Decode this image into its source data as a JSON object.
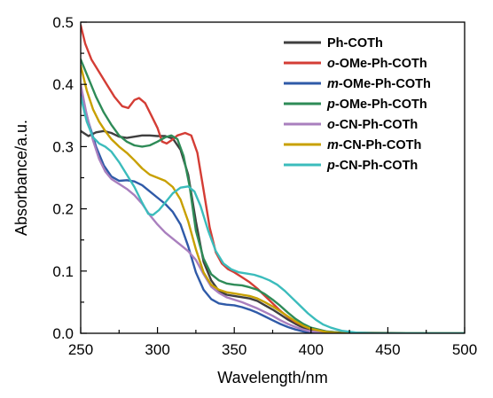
{
  "chart_data": {
    "type": "line",
    "xlabel": "Wavelength/nm",
    "ylabel": "Absorbance/a.u.",
    "xlim": [
      250,
      500
    ],
    "ylim": [
      0.0,
      0.5
    ],
    "xticks": [
      250,
      300,
      350,
      400,
      450,
      500
    ],
    "yticks": [
      0.0,
      0.1,
      0.2,
      0.3,
      0.4,
      0.5
    ],
    "xtick_labels": [
      "250",
      "300",
      "350",
      "400",
      "450",
      "500"
    ],
    "ytick_labels": [
      "0.0",
      "0.1",
      "0.2",
      "0.3",
      "0.4",
      "0.5"
    ],
    "grid": false,
    "legend_position": "top-right",
    "series": [
      {
        "name": "Ph-COTh",
        "prefix": "",
        "rest": "Ph-COTh",
        "color": "#3f3f3f",
        "points": [
          [
            250,
            0.325
          ],
          [
            255,
            0.317
          ],
          [
            260,
            0.323
          ],
          [
            265,
            0.325
          ],
          [
            270,
            0.322
          ],
          [
            275,
            0.316
          ],
          [
            280,
            0.314
          ],
          [
            285,
            0.316
          ],
          [
            290,
            0.318
          ],
          [
            295,
            0.318
          ],
          [
            300,
            0.317
          ],
          [
            305,
            0.317
          ],
          [
            310,
            0.313
          ],
          [
            315,
            0.295
          ],
          [
            320,
            0.255
          ],
          [
            325,
            0.18
          ],
          [
            330,
            0.115
          ],
          [
            335,
            0.085
          ],
          [
            340,
            0.068
          ],
          [
            345,
            0.062
          ],
          [
            350,
            0.06
          ],
          [
            355,
            0.058
          ],
          [
            360,
            0.056
          ],
          [
            365,
            0.052
          ],
          [
            370,
            0.045
          ],
          [
            375,
            0.038
          ],
          [
            380,
            0.03
          ],
          [
            385,
            0.022
          ],
          [
            390,
            0.015
          ],
          [
            395,
            0.009
          ],
          [
            400,
            0.005
          ],
          [
            410,
            0.002
          ],
          [
            420,
            0.0
          ],
          [
            500,
            0.0
          ]
        ]
      },
      {
        "name": "o-OMe-Ph-COTh",
        "prefix": "o",
        "rest": "-OMe-Ph-COTh",
        "color": "#d43d35",
        "points": [
          [
            250,
            0.495
          ],
          [
            253,
            0.465
          ],
          [
            257,
            0.44
          ],
          [
            262,
            0.42
          ],
          [
            267,
            0.4
          ],
          [
            272,
            0.38
          ],
          [
            277,
            0.365
          ],
          [
            281,
            0.362
          ],
          [
            285,
            0.375
          ],
          [
            288,
            0.378
          ],
          [
            292,
            0.37
          ],
          [
            296,
            0.35
          ],
          [
            300,
            0.33
          ],
          [
            303,
            0.308
          ],
          [
            306,
            0.305
          ],
          [
            309,
            0.31
          ],
          [
            313,
            0.318
          ],
          [
            318,
            0.322
          ],
          [
            322,
            0.318
          ],
          [
            326,
            0.29
          ],
          [
            330,
            0.23
          ],
          [
            334,
            0.17
          ],
          [
            338,
            0.13
          ],
          [
            342,
            0.112
          ],
          [
            346,
            0.103
          ],
          [
            350,
            0.098
          ],
          [
            355,
            0.09
          ],
          [
            360,
            0.082
          ],
          [
            365,
            0.072
          ],
          [
            370,
            0.06
          ],
          [
            375,
            0.048
          ],
          [
            380,
            0.036
          ],
          [
            385,
            0.026
          ],
          [
            390,
            0.018
          ],
          [
            395,
            0.012
          ],
          [
            400,
            0.007
          ],
          [
            410,
            0.003
          ],
          [
            420,
            0.001
          ],
          [
            500,
            0.0
          ]
        ]
      },
      {
        "name": "m-OMe-Ph-COTh",
        "prefix": "m",
        "rest": "-OMe-Ph-COTh",
        "color": "#2f5aa8",
        "points": [
          [
            250,
            0.39
          ],
          [
            255,
            0.34
          ],
          [
            260,
            0.3
          ],
          [
            265,
            0.27
          ],
          [
            270,
            0.252
          ],
          [
            275,
            0.245
          ],
          [
            280,
            0.246
          ],
          [
            285,
            0.244
          ],
          [
            290,
            0.238
          ],
          [
            295,
            0.228
          ],
          [
            300,
            0.218
          ],
          [
            305,
            0.208
          ],
          [
            310,
            0.195
          ],
          [
            315,
            0.175
          ],
          [
            320,
            0.14
          ],
          [
            325,
            0.098
          ],
          [
            330,
            0.07
          ],
          [
            335,
            0.055
          ],
          [
            340,
            0.048
          ],
          [
            345,
            0.046
          ],
          [
            350,
            0.045
          ],
          [
            355,
            0.042
          ],
          [
            360,
            0.038
          ],
          [
            365,
            0.033
          ],
          [
            370,
            0.027
          ],
          [
            375,
            0.021
          ],
          [
            380,
            0.015
          ],
          [
            385,
            0.01
          ],
          [
            390,
            0.006
          ],
          [
            395,
            0.003
          ],
          [
            400,
            0.001
          ],
          [
            410,
            0.0
          ],
          [
            500,
            0.0
          ]
        ]
      },
      {
        "name": "p-OMe-Ph-COTh",
        "prefix": "p",
        "rest": "-OMe-Ph-COTh",
        "color": "#2e8b57",
        "points": [
          [
            250,
            0.44
          ],
          [
            255,
            0.41
          ],
          [
            260,
            0.38
          ],
          [
            265,
            0.355
          ],
          [
            270,
            0.335
          ],
          [
            275,
            0.318
          ],
          [
            280,
            0.308
          ],
          [
            285,
            0.302
          ],
          [
            290,
            0.3
          ],
          [
            295,
            0.302
          ],
          [
            300,
            0.308
          ],
          [
            305,
            0.315
          ],
          [
            309,
            0.318
          ],
          [
            313,
            0.312
          ],
          [
            317,
            0.285
          ],
          [
            321,
            0.235
          ],
          [
            325,
            0.165
          ],
          [
            330,
            0.12
          ],
          [
            335,
            0.095
          ],
          [
            340,
            0.085
          ],
          [
            345,
            0.08
          ],
          [
            350,
            0.078
          ],
          [
            355,
            0.077
          ],
          [
            360,
            0.074
          ],
          [
            365,
            0.07
          ],
          [
            370,
            0.063
          ],
          [
            375,
            0.054
          ],
          [
            380,
            0.044
          ],
          [
            385,
            0.033
          ],
          [
            390,
            0.023
          ],
          [
            395,
            0.015
          ],
          [
            400,
            0.009
          ],
          [
            410,
            0.003
          ],
          [
            420,
            0.001
          ],
          [
            500,
            0.0
          ]
        ]
      },
      {
        "name": "o-CN-Ph-COTh",
        "prefix": "o",
        "rest": "-CN-Ph-COTh",
        "color": "#a97fbe",
        "points": [
          [
            250,
            0.4
          ],
          [
            254,
            0.35
          ],
          [
            258,
            0.31
          ],
          [
            262,
            0.28
          ],
          [
            266,
            0.26
          ],
          [
            270,
            0.248
          ],
          [
            275,
            0.24
          ],
          [
            280,
            0.232
          ],
          [
            285,
            0.222
          ],
          [
            290,
            0.208
          ],
          [
            295,
            0.19
          ],
          [
            300,
            0.175
          ],
          [
            305,
            0.162
          ],
          [
            310,
            0.152
          ],
          [
            315,
            0.142
          ],
          [
            320,
            0.132
          ],
          [
            325,
            0.118
          ],
          [
            330,
            0.095
          ],
          [
            335,
            0.075
          ],
          [
            340,
            0.065
          ],
          [
            345,
            0.058
          ],
          [
            350,
            0.054
          ],
          [
            355,
            0.05
          ],
          [
            360,
            0.045
          ],
          [
            365,
            0.04
          ],
          [
            370,
            0.034
          ],
          [
            375,
            0.028
          ],
          [
            380,
            0.021
          ],
          [
            385,
            0.015
          ],
          [
            390,
            0.01
          ],
          [
            395,
            0.006
          ],
          [
            400,
            0.003
          ],
          [
            410,
            0.001
          ],
          [
            420,
            0.0
          ],
          [
            500,
            0.0
          ]
        ]
      },
      {
        "name": "m-CN-Ph-COTh",
        "prefix": "m",
        "rest": "-CN-Ph-COTh",
        "color": "#c8a000",
        "points": [
          [
            250,
            0.43
          ],
          [
            254,
            0.39
          ],
          [
            258,
            0.36
          ],
          [
            262,
            0.34
          ],
          [
            266,
            0.325
          ],
          [
            270,
            0.312
          ],
          [
            275,
            0.3
          ],
          [
            280,
            0.29
          ],
          [
            285,
            0.278
          ],
          [
            290,
            0.265
          ],
          [
            295,
            0.255
          ],
          [
            300,
            0.25
          ],
          [
            305,
            0.245
          ],
          [
            310,
            0.235
          ],
          [
            315,
            0.215
          ],
          [
            320,
            0.18
          ],
          [
            325,
            0.135
          ],
          [
            330,
            0.098
          ],
          [
            335,
            0.078
          ],
          [
            340,
            0.07
          ],
          [
            345,
            0.066
          ],
          [
            350,
            0.064
          ],
          [
            355,
            0.062
          ],
          [
            360,
            0.06
          ],
          [
            365,
            0.056
          ],
          [
            370,
            0.05
          ],
          [
            375,
            0.043
          ],
          [
            380,
            0.035
          ],
          [
            385,
            0.027
          ],
          [
            390,
            0.019
          ],
          [
            395,
            0.012
          ],
          [
            400,
            0.007
          ],
          [
            410,
            0.002
          ],
          [
            420,
            0.0
          ],
          [
            500,
            0.0
          ]
        ]
      },
      {
        "name": "p-CN-Ph-COTh",
        "prefix": "p",
        "rest": "-CN-Ph-COTh",
        "color": "#3bbcbc",
        "points": [
          [
            250,
            0.38
          ],
          [
            254,
            0.34
          ],
          [
            258,
            0.315
          ],
          [
            262,
            0.305
          ],
          [
            266,
            0.3
          ],
          [
            270,
            0.292
          ],
          [
            275,
            0.275
          ],
          [
            280,
            0.255
          ],
          [
            285,
            0.235
          ],
          [
            290,
            0.21
          ],
          [
            294,
            0.192
          ],
          [
            297,
            0.19
          ],
          [
            301,
            0.198
          ],
          [
            305,
            0.21
          ],
          [
            310,
            0.225
          ],
          [
            315,
            0.234
          ],
          [
            320,
            0.236
          ],
          [
            324,
            0.228
          ],
          [
            328,
            0.205
          ],
          [
            333,
            0.165
          ],
          [
            338,
            0.132
          ],
          [
            343,
            0.112
          ],
          [
            348,
            0.103
          ],
          [
            353,
            0.098
          ],
          [
            358,
            0.096
          ],
          [
            363,
            0.094
          ],
          [
            368,
            0.09
          ],
          [
            373,
            0.085
          ],
          [
            378,
            0.078
          ],
          [
            383,
            0.068
          ],
          [
            388,
            0.056
          ],
          [
            393,
            0.044
          ],
          [
            398,
            0.032
          ],
          [
            403,
            0.022
          ],
          [
            408,
            0.014
          ],
          [
            413,
            0.009
          ],
          [
            420,
            0.004
          ],
          [
            430,
            0.001
          ],
          [
            440,
            0.0
          ],
          [
            500,
            0.0
          ]
        ]
      }
    ]
  }
}
